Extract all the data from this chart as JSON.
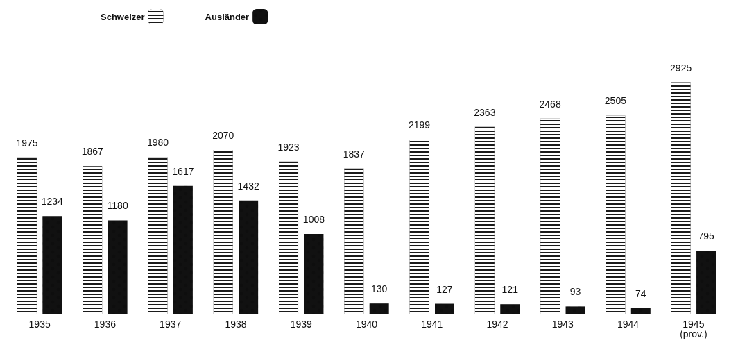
{
  "chart_data": {
    "type": "bar",
    "categories": [
      "1935",
      "1936",
      "1937",
      "1938",
      "1939",
      "1940",
      "1941",
      "1942",
      "1943",
      "1944",
      "1945\n(prov.)"
    ],
    "series": [
      {
        "name": "Schweizer",
        "color": "#1a1a1a",
        "values": [
          1975,
          1867,
          1980,
          2070,
          1923,
          1837,
          2199,
          2363,
          2468,
          2505,
          2925
        ]
      },
      {
        "name": "Ausländer",
        "color": "#111111",
        "values": [
          1234,
          1180,
          1617,
          1432,
          1008,
          130,
          127,
          121,
          93,
          74,
          795
        ]
      }
    ],
    "data_labels": true,
    "legend": "top"
  }
}
